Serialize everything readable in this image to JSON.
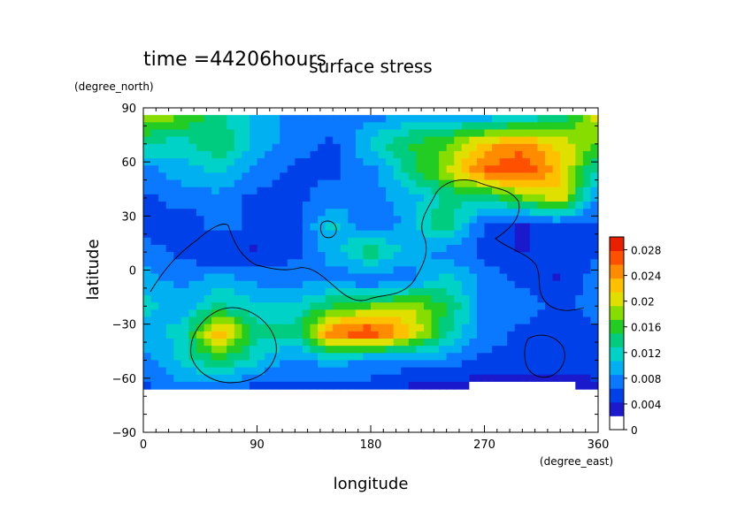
{
  "chart_data": {
    "type": "heatmap",
    "title": "surface stress",
    "subtitle": "time =44206hours",
    "xlabel": "longitude",
    "ylabel": "latitude",
    "x_unit": "(degree_east)",
    "y_unit": "(degree_north)",
    "xlim": [
      0,
      360
    ],
    "ylim": [
      -90,
      90
    ],
    "x_ticks": [
      "0",
      "90",
      "180",
      "270",
      "360"
    ],
    "y_ticks": [
      "90",
      "60",
      "30",
      "0",
      "−30",
      "−60",
      "−90"
    ],
    "colorbar": {
      "min": 0,
      "max": 0.03,
      "labels": [
        "0.028",
        "0.024",
        "0.02",
        "0.016",
        "0.012",
        "0.008",
        "0.004",
        "0"
      ],
      "colors": [
        "#ffffff",
        "#1a1acc",
        "#0040e8",
        "#0a78ff",
        "#00b0f0",
        "#00d2c8",
        "#00cc80",
        "#22cc22",
        "#88dd00",
        "#e0e000",
        "#ffc000",
        "#ff8c00",
        "#ff5000",
        "#e82000"
      ]
    },
    "lat": [
      85,
      70,
      55,
      40,
      25,
      10,
      -5,
      -20,
      -35,
      -50,
      -65,
      -80
    ],
    "lon": [
      0,
      30,
      60,
      90,
      120,
      150,
      180,
      210,
      240,
      270,
      300,
      330,
      360
    ],
    "values": [
      [
        0.018,
        0.016,
        0.012,
        0.008,
        0.006,
        0.006,
        0.006,
        0.008,
        0.008,
        0.008,
        0.01,
        0.012,
        0.02
      ],
      [
        0.012,
        0.01,
        0.014,
        0.008,
        0.006,
        0.004,
        0.01,
        0.014,
        0.016,
        0.022,
        0.024,
        0.02,
        0.016
      ],
      [
        0.006,
        0.008,
        0.01,
        0.006,
        0.004,
        0.004,
        0.006,
        0.012,
        0.018,
        0.026,
        0.028,
        0.022,
        0.01
      ],
      [
        0.004,
        0.006,
        0.006,
        0.004,
        0.004,
        0.006,
        0.006,
        0.008,
        0.012,
        0.012,
        0.016,
        0.02,
        0.006
      ],
      [
        0.004,
        0.002,
        0.006,
        0.004,
        0.004,
        0.01,
        0.004,
        0.008,
        0.014,
        0.004,
        0.002,
        0.004,
        0.004
      ],
      [
        0.006,
        0.004,
        0.002,
        0.002,
        0.004,
        0.008,
        0.014,
        0.008,
        0.006,
        0.004,
        0.002,
        0.004,
        0.004
      ],
      [
        0.008,
        0.006,
        0.008,
        0.006,
        0.006,
        0.006,
        0.004,
        0.006,
        0.01,
        0.006,
        0.004,
        0.002,
        0.006
      ],
      [
        0.01,
        0.008,
        0.012,
        0.01,
        0.01,
        0.014,
        0.016,
        0.018,
        0.014,
        0.006,
        0.006,
        0.004,
        0.006
      ],
      [
        0.008,
        0.01,
        0.024,
        0.012,
        0.012,
        0.026,
        0.028,
        0.022,
        0.012,
        0.006,
        0.004,
        0.002,
        0.004
      ],
      [
        0.006,
        0.01,
        0.014,
        0.01,
        0.006,
        0.008,
        0.006,
        0.006,
        0.006,
        0.004,
        0.004,
        0.004,
        0.004
      ],
      [
        0.004,
        0.006,
        0.006,
        0.004,
        0.004,
        0.004,
        0.004,
        0.002,
        0.002,
        0.0,
        0.0,
        0.0,
        0.002
      ],
      [
        0.0,
        0.0,
        0.0,
        0.0,
        0.0,
        0.0,
        0.0,
        0.0,
        0.0,
        0.0,
        0.0,
        0.0,
        0.0
      ]
    ]
  }
}
